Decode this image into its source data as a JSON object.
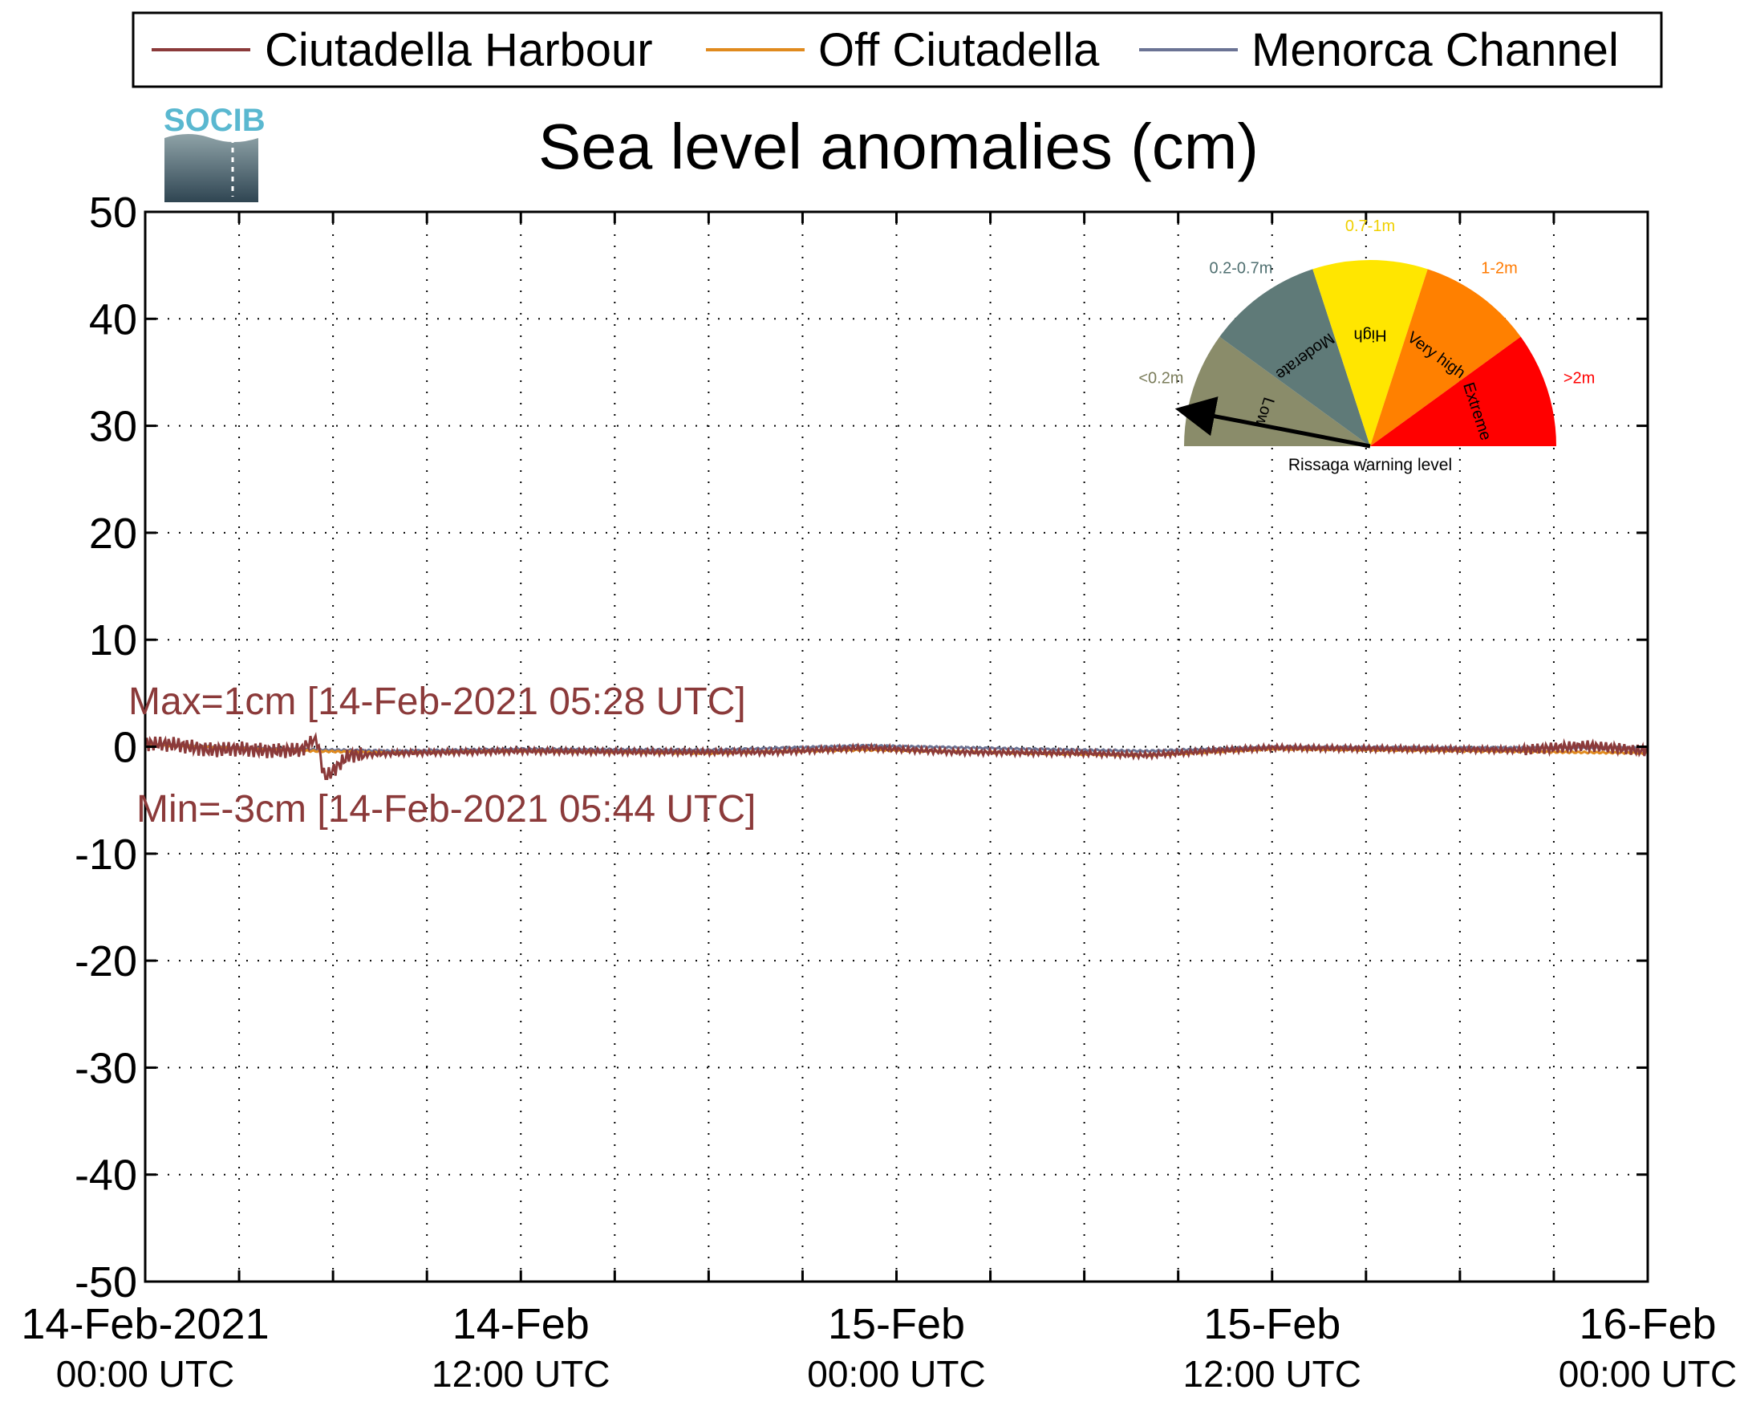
{
  "chart_data": {
    "type": "line",
    "title": "Sea level anomalies (cm)",
    "xlabel": "",
    "ylabel": "",
    "ylim": [
      -50,
      50
    ],
    "yticks": [
      50,
      40,
      30,
      20,
      10,
      0,
      -10,
      -20,
      -30,
      -40,
      -50
    ],
    "y_tick_labels": [
      "50",
      "40",
      "30",
      "20",
      "10",
      "0",
      "-10",
      "-20",
      "-30",
      "-40",
      "-50"
    ],
    "xlim": [
      "2021-02-14 00:00",
      "2021-02-16 00:00"
    ],
    "x_tick_labels": [
      {
        "line1": "14-Feb-2021",
        "line2": "00:00 UTC"
      },
      {
        "line1": "14-Feb",
        "line2": "12:00 UTC"
      },
      {
        "line1": "15-Feb",
        "line2": "00:00 UTC"
      },
      {
        "line1": "15-Feb",
        "line2": "12:00 UTC"
      },
      {
        "line1": "16-Feb",
        "line2": "00:00 UTC"
      }
    ],
    "grid": true,
    "legend_position": "top",
    "series": [
      {
        "name": "Ciutadella Harbour",
        "color": "#8b3a3a",
        "points": [
          [
            "2021-02-14 00:00",
            0.3
          ],
          [
            "2021-02-14 01:00",
            0.2
          ],
          [
            "2021-02-14 02:00",
            -0.3
          ],
          [
            "2021-02-14 03:00",
            -0.2
          ],
          [
            "2021-02-14 04:00",
            -0.4
          ],
          [
            "2021-02-14 05:00",
            -0.3
          ],
          [
            "2021-02-14 05:28",
            1.0
          ],
          [
            "2021-02-14 05:44",
            -3.0
          ],
          [
            "2021-02-14 06:30",
            -0.8
          ],
          [
            "2021-02-14 08:00",
            -0.6
          ],
          [
            "2021-02-14 10:00",
            -0.5
          ],
          [
            "2021-02-14 12:00",
            -0.4
          ],
          [
            "2021-02-14 16:00",
            -0.5
          ],
          [
            "2021-02-14 20:00",
            -0.5
          ],
          [
            "2021-02-14 23:00",
            -0.1
          ],
          [
            "2021-02-15 02:00",
            -0.5
          ],
          [
            "2021-02-15 06:00",
            -0.6
          ],
          [
            "2021-02-15 08:00",
            -0.8
          ],
          [
            "2021-02-15 10:00",
            -0.4
          ],
          [
            "2021-02-15 12:00",
            -0.1
          ],
          [
            "2021-02-15 16:00",
            -0.2
          ],
          [
            "2021-02-15 20:00",
            -0.3
          ],
          [
            "2021-02-15 22:00",
            0.1
          ],
          [
            "2021-02-16 00:00",
            -0.4
          ]
        ]
      },
      {
        "name": "Off Ciutadella",
        "color": "#e08a1e",
        "points": [
          [
            "2021-02-14 00:00",
            0.2
          ],
          [
            "2021-02-14 04:00",
            -0.3
          ],
          [
            "2021-02-14 08:00",
            -0.6
          ],
          [
            "2021-02-14 12:00",
            -0.4
          ],
          [
            "2021-02-14 18:00",
            -0.6
          ],
          [
            "2021-02-14 23:00",
            -0.3
          ],
          [
            "2021-02-15 04:00",
            -0.6
          ],
          [
            "2021-02-15 08:00",
            -0.8
          ],
          [
            "2021-02-15 12:00",
            -0.2
          ],
          [
            "2021-02-15 18:00",
            -0.4
          ],
          [
            "2021-02-16 00:00",
            -0.6
          ]
        ]
      },
      {
        "name": "Menorca Channel",
        "color": "#6b7394",
        "points": [
          [
            "2021-02-14 00:00",
            0.2
          ],
          [
            "2021-02-14 04:00",
            -0.2
          ],
          [
            "2021-02-14 08:00",
            -0.4
          ],
          [
            "2021-02-14 12:00",
            -0.2
          ],
          [
            "2021-02-14 18:00",
            -0.3
          ],
          [
            "2021-02-14 23:00",
            0.1
          ],
          [
            "2021-02-15 04:00",
            -0.2
          ],
          [
            "2021-02-15 08:00",
            -0.4
          ],
          [
            "2021-02-15 12:00",
            0.0
          ],
          [
            "2021-02-15 18:00",
            -0.1
          ],
          [
            "2021-02-16 00:00",
            -0.1
          ]
        ]
      }
    ],
    "annotations": {
      "max": "Max=1cm [14-Feb-2021 05:28 UTC]",
      "min": "Min=-3cm [14-Feb-2021 05:44 UTC]",
      "color": "#8b3a3a"
    }
  },
  "logo": {
    "text": "SOCIB",
    "color": "#5ab8d0"
  },
  "gauge": {
    "caption": "Rissaga warning level",
    "needle_level": "Low",
    "sectors": [
      {
        "label": "Low",
        "range": "<0.2m",
        "color": "#8a8c6a",
        "range_color": "#7a7c5a"
      },
      {
        "label": "Moderate",
        "range": "0.2-0.7m",
        "color": "#5f7a78",
        "range_color": "#4f6f70"
      },
      {
        "label": "High",
        "range": "0.7-1m",
        "color": "#ffe600",
        "range_color": "#f0d000"
      },
      {
        "label": "Very high",
        "range": "1-2m",
        "color": "#ff8000",
        "range_color": "#ff7a00"
      },
      {
        "label": "Extreme",
        "range": ">2m",
        "color": "#ff0000",
        "range_color": "#ff0000"
      }
    ]
  }
}
